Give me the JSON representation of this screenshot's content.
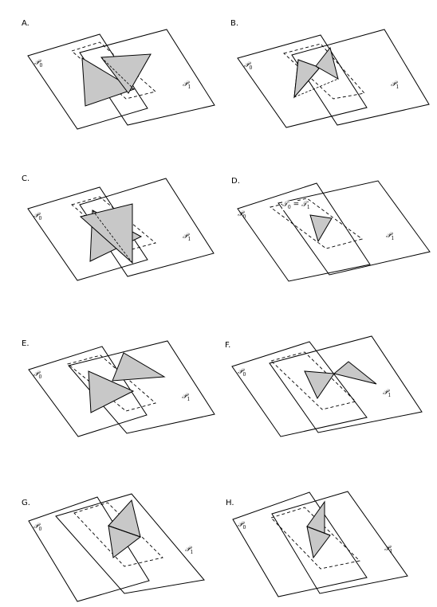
{
  "panels": [
    {
      "letter": "A.",
      "p0": "𝒫",
      "p1": "𝒫",
      "sub0": "0",
      "sub1": "1"
    },
    {
      "letter": "B.",
      "p0": "𝒫",
      "p1": "𝒫",
      "sub0": "0",
      "sub1": "1"
    },
    {
      "letter": "C.",
      "p0": "𝒫",
      "p1": "𝒫",
      "sub0": "0",
      "sub1": "1"
    },
    {
      "letter": "D.",
      "p0": "𝒫",
      "p1": "𝒫",
      "sub0": "0",
      "sub1": "1",
      "tri_label_a": "𝒯",
      "tri_sub_a": "0",
      "tri_eq": " = ",
      "tri_label_b": "𝒯",
      "tri_sub_b": "1"
    },
    {
      "letter": "E.",
      "p0": "𝒫",
      "p1": "𝒫",
      "sub0": "0",
      "sub1": "1"
    },
    {
      "letter": "F.",
      "p0": "𝒫",
      "p1": "𝒫",
      "sub0": "0",
      "sub1": "1"
    },
    {
      "letter": "G.",
      "p0": "𝒫",
      "p1": "𝒫",
      "sub0": "0",
      "sub1": "1"
    },
    {
      "letter": "H.",
      "p0": "𝒫",
      "p1": "𝒫",
      "sub0": "0",
      "sub1": "1"
    }
  ],
  "colors": {
    "triangle_fill": "#c8c8c8",
    "stroke": "#000000",
    "background": "#ffffff"
  }
}
